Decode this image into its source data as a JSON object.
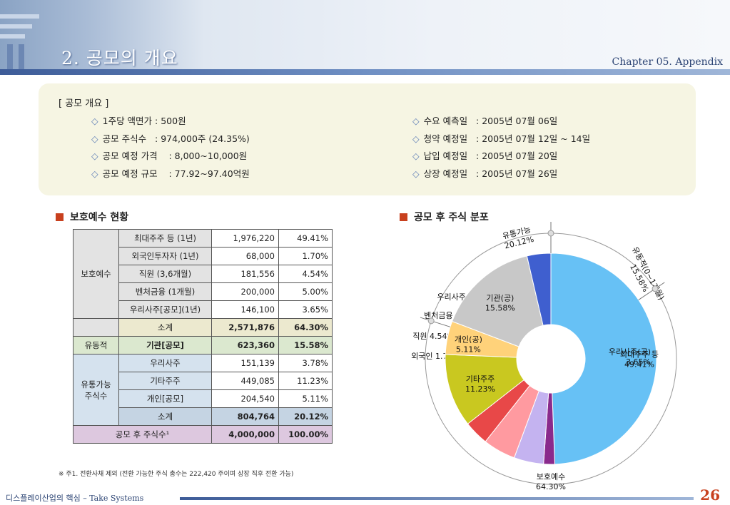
{
  "header": {
    "title": "2. 공모의 개요",
    "chapter": "Chapter 05. Appendix"
  },
  "overview": {
    "heading": "[ 공모 개요 ]",
    "left": [
      "1주당 액면가 : 500원",
      "공모 주식수   : 974,000주 (24.35%)",
      "공모 예정 가격    : 8,000~10,000원",
      "공모 예정 규모    : 77.92~97.40억원"
    ],
    "right": [
      "수요 예측일   : 2005년 07월 06일",
      "청약 예정일   : 2005년 07월 12일 ~ 14일",
      "납입 예정일   : 2005년 07월 20일",
      "상장 예정일   : 2005년 07월 26일"
    ]
  },
  "lock_section": {
    "title": "보호예수 현황",
    "groups": {
      "protect": "보호예수",
      "float": "유동적",
      "tradable": "유통가능 주식수"
    },
    "rows": [
      {
        "label": "최대주주 등 (1년)",
        "shares": "1,976,220",
        "pct": "49.41%"
      },
      {
        "label": "외국인투자자 (1년)",
        "shares": "68,000",
        "pct": "1.70%"
      },
      {
        "label": "직원 (3,6개월)",
        "shares": "181,556",
        "pct": "4.54%"
      },
      {
        "label": "벤처금융 (1개월)",
        "shares": "200,000",
        "pct": "5.00%"
      },
      {
        "label": "우리사주[공모](1년)",
        "shares": "146,100",
        "pct": "3.65%"
      },
      {
        "label": "소계",
        "shares": "2,571,876",
        "pct": "64.30%"
      },
      {
        "label": "기관[공모]",
        "shares": "623,360",
        "pct": "15.58%"
      },
      {
        "label": "우리사주",
        "shares": "151,139",
        "pct": "3.78%"
      },
      {
        "label": "기타주주",
        "shares": "449,085",
        "pct": "11.23%"
      },
      {
        "label": "개인[공모]",
        "shares": "204,540",
        "pct": "5.11%"
      },
      {
        "label": "소계",
        "shares": "804,764",
        "pct": "20.12%"
      }
    ],
    "total": {
      "label": "공모 후 주식수¹",
      "shares": "4,000,000",
      "pct": "100.00%"
    }
  },
  "note": "※ 주1. 전환사채 제외 (전환 가능한 주식 총수는 222,420 주이며 상장 직후 전환 가능)",
  "chart_section": {
    "title": "공모 후 주식 분포"
  },
  "chart_data": {
    "type": "pie",
    "title": "공모 후 주식 분포",
    "inner_slices": [
      {
        "label": "최대주주 등",
        "value": 49.41,
        "display": "최대주주 등\n49.41%",
        "color": "#67c1f5"
      },
      {
        "label": "외국인",
        "value": 1.7,
        "display": "외국인 1.70%",
        "color": "#8a2a8c"
      },
      {
        "label": "직원",
        "value": 4.54,
        "display": "직원 4.54%",
        "color": "#c4b3f0"
      },
      {
        "label": "벤처금융",
        "value": 5.0,
        "display": "벤처금융 5.00%",
        "color": "#ff9aa0"
      },
      {
        "label": "우리사주(구)",
        "value": 3.78,
        "display": "우리사주(구) 3.78%",
        "color": "#e84848"
      },
      {
        "label": "기타주주",
        "value": 11.23,
        "display": "기타주주\n11.23%",
        "color": "#c9c820"
      },
      {
        "label": "개인(공)",
        "value": 5.11,
        "display": "개인(공)\n5.11%",
        "color": "#ffd27a"
      },
      {
        "label": "기관(공)",
        "value": 15.58,
        "display": "기관(공)\n15.58%",
        "color": "#c8c8c8"
      },
      {
        "label": "우리사주(공)",
        "value": 3.65,
        "display": "우리사주(공)\n3.65%",
        "color": "#3f5fcf"
      }
    ],
    "outer_groups": [
      {
        "label": "유통가능",
        "value": 20.12,
        "display": "유통가능\n20.12%"
      },
      {
        "label": "유동적(0~1개월)",
        "value": 15.58,
        "display": "유동적(0~1개월)\n15.58%"
      },
      {
        "label": "보호예수",
        "value": 64.3,
        "display": "보호예수\n64.30%"
      }
    ]
  },
  "footer": {
    "left": "디스플레이산업의 핵심 – Take Systems",
    "page": "26"
  }
}
